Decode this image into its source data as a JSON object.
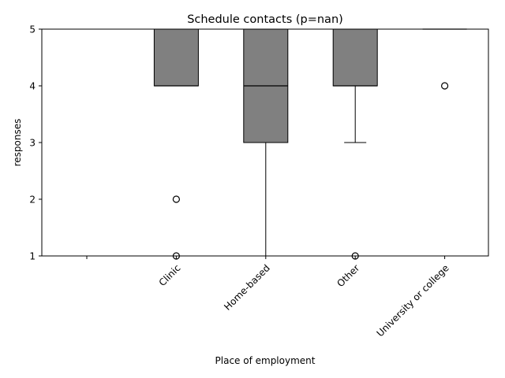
{
  "chart_data": {
    "type": "box",
    "title": "Schedule contacts (p=nan)",
    "xlabel": "Place of employment",
    "ylabel": "responses",
    "ylim": [
      1,
      5
    ],
    "yticks": [
      1,
      2,
      3,
      4,
      5
    ],
    "grid": false,
    "categories": [
      "",
      "Clinic",
      "Home-based",
      "Other",
      "University or college"
    ],
    "boxes": [
      null,
      {
        "whisker_low": 4,
        "q1": 4,
        "median": 4,
        "q3": 5,
        "whisker_high": 5,
        "outliers": [
          2,
          1
        ]
      },
      {
        "whisker_low": 1,
        "q1": 3,
        "median": 4,
        "q3": 5,
        "whisker_high": 5,
        "outliers": []
      },
      {
        "whisker_low": 3,
        "q1": 4,
        "median": 4,
        "q3": 5,
        "whisker_high": 5,
        "outliers": [
          1
        ]
      },
      {
        "whisker_low": 5,
        "q1": 5,
        "median": 5,
        "q3": 5,
        "whisker_high": 5,
        "outliers": [
          4
        ]
      }
    ],
    "colors": {
      "box_fill": "#808080",
      "box_edge": "#000000",
      "axis": "#000000"
    }
  }
}
